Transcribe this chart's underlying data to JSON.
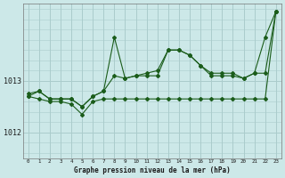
{
  "xlabel": "Graphe pression niveau de la mer (hPa)",
  "bg_color": "#cce8e8",
  "grid_color": "#aacccc",
  "line_color": "#1a5c1a",
  "xlim": [
    -0.5,
    23.5
  ],
  "ylim": [
    1011.5,
    1014.5
  ],
  "yticks": [
    1012,
    1013
  ],
  "xticks": [
    0,
    1,
    2,
    3,
    4,
    5,
    6,
    7,
    8,
    9,
    10,
    11,
    12,
    13,
    14,
    15,
    16,
    17,
    18,
    19,
    20,
    21,
    22,
    23
  ],
  "series1": [
    1012.75,
    1012.8,
    1012.65,
    1012.65,
    1012.65,
    1012.5,
    1012.7,
    1012.8,
    1013.85,
    1013.05,
    1013.1,
    1013.15,
    1013.2,
    1013.6,
    1013.6,
    1013.5,
    1013.3,
    1013.1,
    1013.1,
    1013.1,
    1013.05,
    1013.15,
    1013.85,
    1014.35
  ],
  "series2": [
    1012.7,
    1012.8,
    1012.65,
    1012.65,
    1012.65,
    1012.5,
    1012.7,
    1012.8,
    1013.1,
    1013.05,
    1013.1,
    1013.1,
    1013.1,
    1013.6,
    1013.6,
    1013.5,
    1013.3,
    1013.15,
    1013.15,
    1013.15,
    1013.05,
    1013.15,
    1013.15,
    1014.35
  ],
  "series3": [
    1012.7,
    1012.65,
    1012.6,
    1012.6,
    1012.55,
    1012.35,
    1012.6,
    1012.65,
    1012.65,
    1012.65,
    1012.65,
    1012.65,
    1012.65,
    1012.65,
    1012.65,
    1012.65,
    1012.65,
    1012.65,
    1012.65,
    1012.65,
    1012.65,
    1012.65,
    1012.65,
    1014.35
  ]
}
